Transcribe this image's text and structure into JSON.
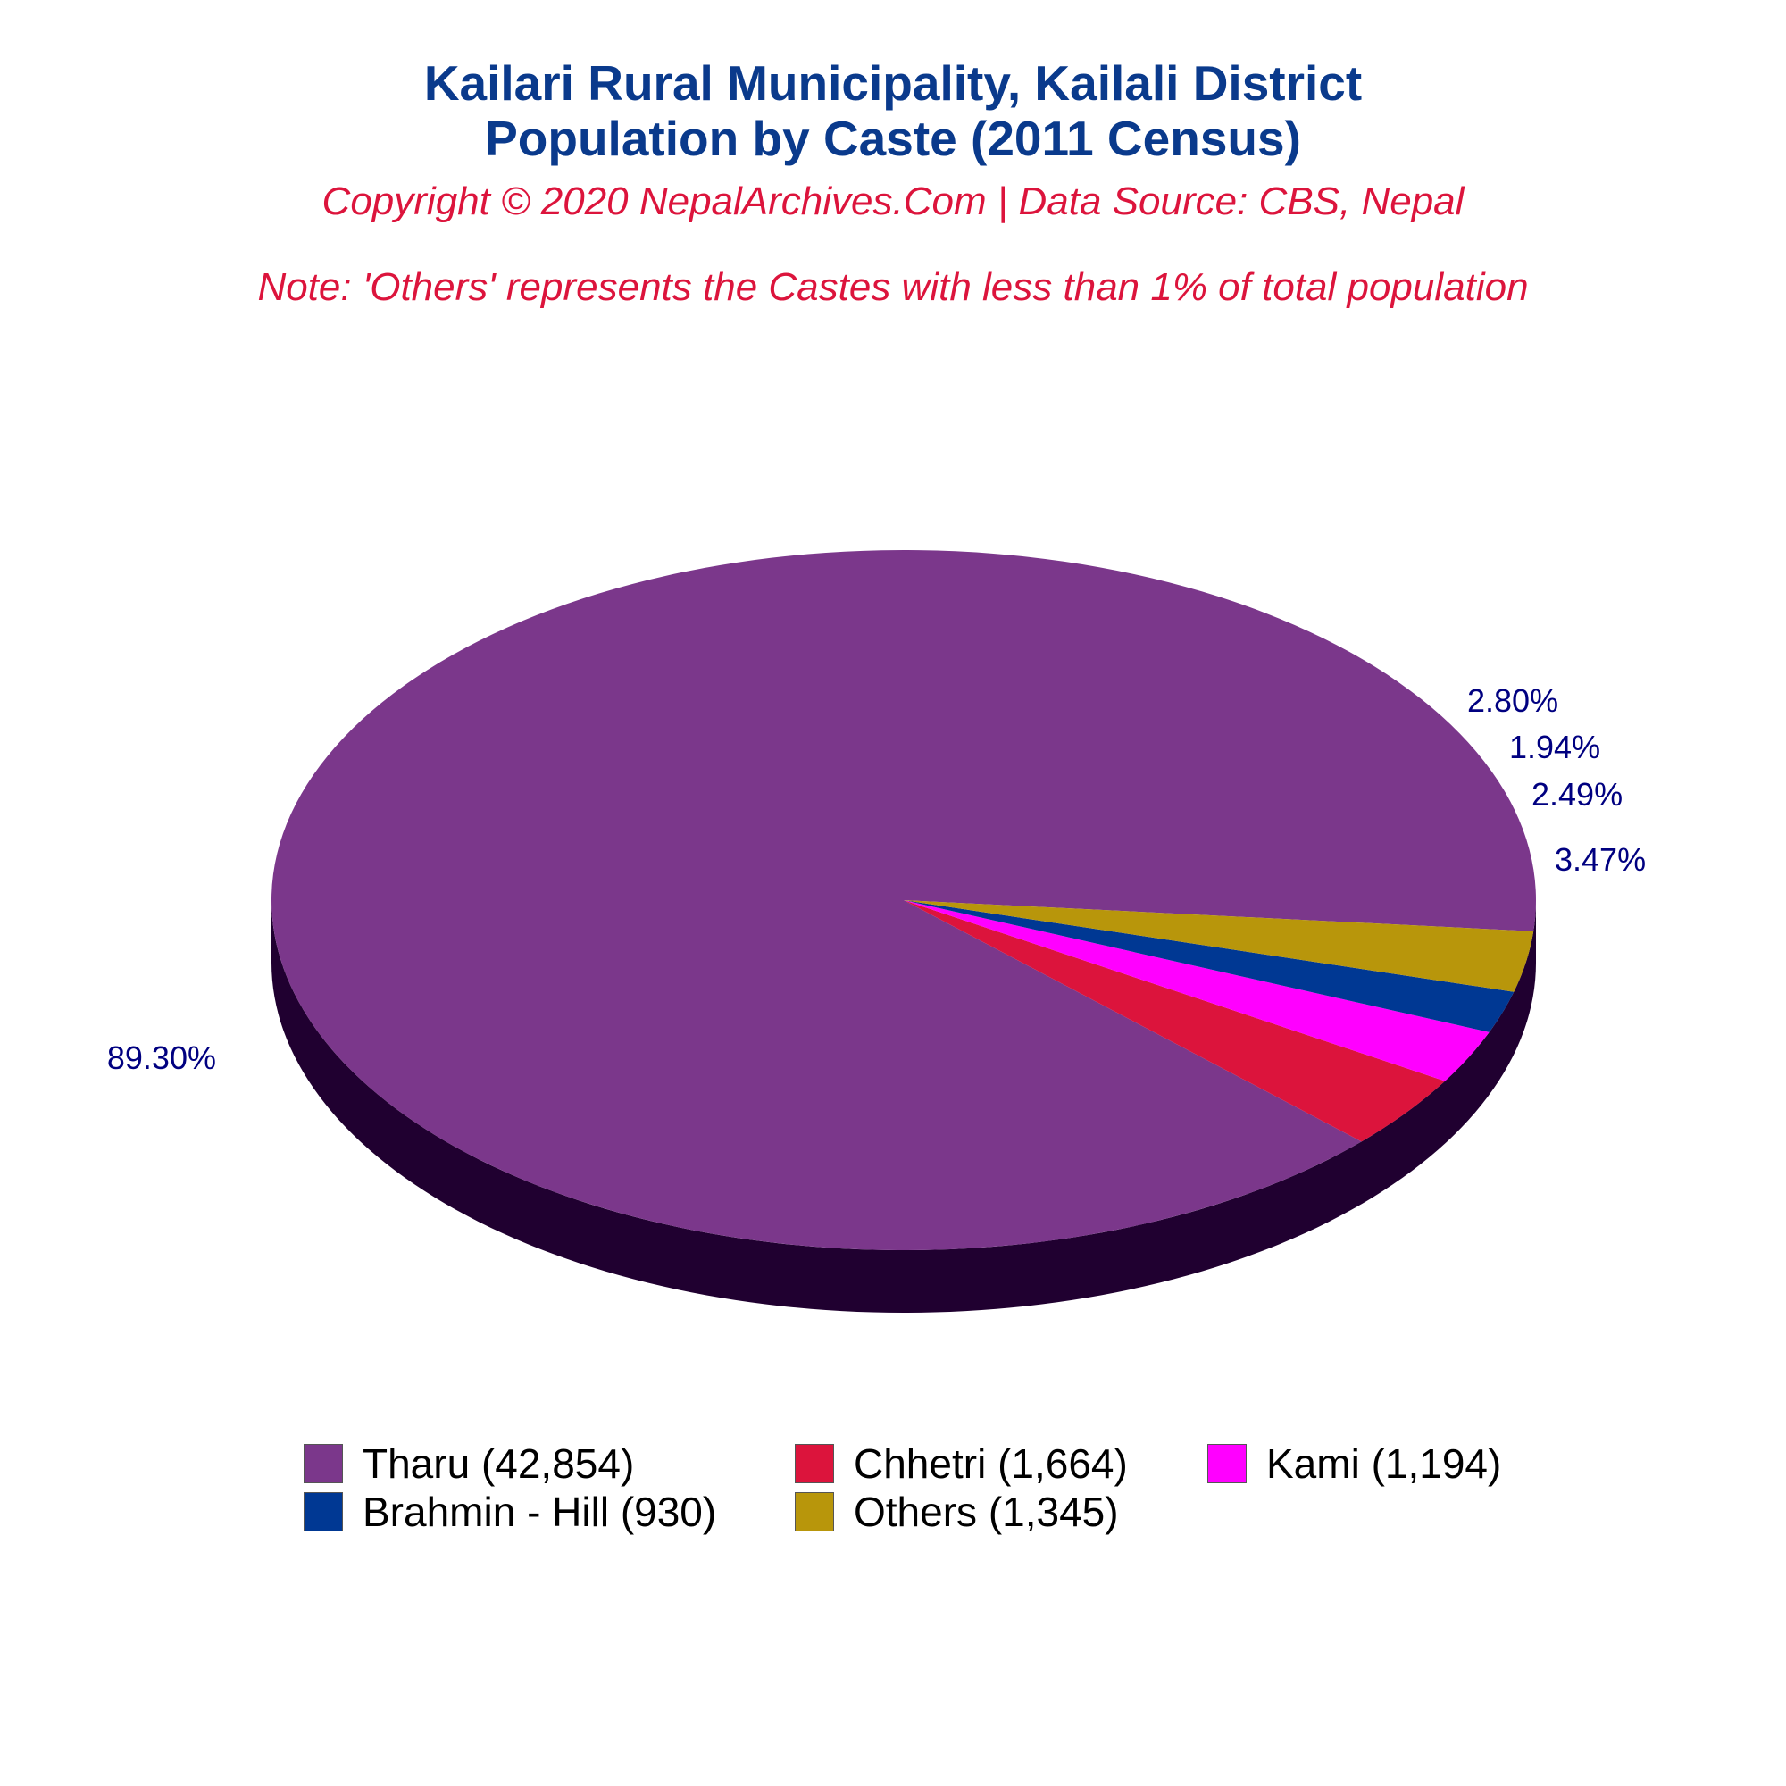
{
  "chart_data": {
    "type": "pie",
    "title": "Kailari Rural Municipality, Kailali District",
    "subtitle": "Population by Caste (2011 Census)",
    "copyright": "Copyright © 2020 NepalArchives.Com | Data Source: CBS, Nepal",
    "note": "Note: 'Others' represents the Castes with less than 1% of total population",
    "legend_position": "bottom",
    "slices": [
      {
        "name": "Tharu",
        "value": 42854,
        "percent_label": "89.30%",
        "legend_label": "Tharu (42,854)",
        "color": "#7b378b"
      },
      {
        "name": "Chhetri",
        "value": 1664,
        "percent_label": "3.47%",
        "legend_label": "Chhetri (1,664)",
        "color": "#dc143c"
      },
      {
        "name": "Kami",
        "value": 1194,
        "percent_label": "2.49%",
        "legend_label": "Kami (1,194)",
        "color": "#ff00ff"
      },
      {
        "name": "Brahmin - Hill",
        "value": 930,
        "percent_label": "1.94%",
        "legend_label": "Brahmin - Hill (930)",
        "color": "#003893"
      },
      {
        "name": "Others",
        "value": 1345,
        "percent_label": "2.80%",
        "legend_label": "Others (1,345)",
        "color": "#b8960b"
      }
    ],
    "side_color": "#200030",
    "label_color": "#000080"
  }
}
